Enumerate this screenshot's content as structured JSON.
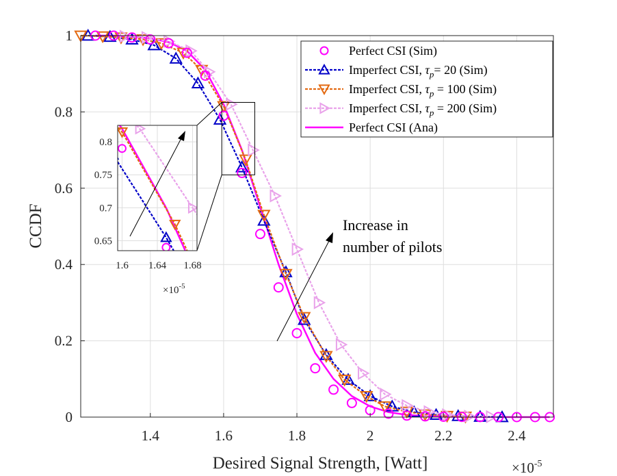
{
  "chart_data": {
    "type": "line",
    "title": "",
    "xlabel": "Desired Signal Strength, [Watt]",
    "ylabel": "CCDF",
    "x_exponent_label": "×10",
    "x_exponent_power": "-5",
    "xlim": [
      1.21,
      2.5
    ],
    "ylim": [
      0,
      1
    ],
    "xticks": [
      1.4,
      1.6,
      1.8,
      2.0,
      2.2,
      2.4
    ],
    "xtick_labels": [
      "1.4",
      "1.6",
      "1.8",
      "2",
      "2.2",
      "2.4"
    ],
    "yticks": [
      0,
      0.2,
      0.4,
      0.6,
      0.8,
      1
    ],
    "ytick_labels": [
      "0",
      "0.2",
      "0.4",
      "0.6",
      "0.8",
      "1"
    ],
    "grid": true,
    "legend_position": "top-right",
    "series": [
      {
        "name": "Perfect CSI (Sim)",
        "legend": {
          "main": "Perfect CSI (Sim)"
        },
        "color": "#ff00ff",
        "line": "none",
        "marker": "circle",
        "x": [
          1.25,
          1.3,
          1.35,
          1.4,
          1.45,
          1.5,
          1.55,
          1.6,
          1.65,
          1.7,
          1.75,
          1.8,
          1.85,
          1.9,
          1.95,
          2.0,
          2.05,
          2.1,
          2.15,
          2.2,
          2.25,
          2.3,
          2.35,
          2.4,
          2.45,
          2.49
        ],
        "y": [
          1.0,
          1.0,
          0.995,
          0.99,
          0.98,
          0.955,
          0.895,
          0.79,
          0.64,
          0.48,
          0.34,
          0.22,
          0.128,
          0.072,
          0.037,
          0.018,
          0.009,
          0.004,
          0.002,
          0.001,
          0.0005,
          0.0002,
          0.0001,
          0.0,
          0.0,
          0.0
        ]
      },
      {
        "name": "Imperfect CSI, τp= 20 (Sim)",
        "legend": {
          "pre": "Imperfect CSI, ",
          "sym": "τ",
          "sub": "p",
          "post": "= 20 (Sim)"
        },
        "color": "#0000c8",
        "line": "dotted",
        "marker": "triangle-up",
        "x": [
          1.23,
          1.29,
          1.35,
          1.41,
          1.47,
          1.53,
          1.59,
          1.65,
          1.71,
          1.77,
          1.82,
          1.88,
          1.94,
          2.0,
          2.06,
          2.12,
          2.18,
          2.24,
          2.3,
          2.36
        ],
        "y": [
          1.0,
          0.997,
          0.99,
          0.975,
          0.94,
          0.875,
          0.78,
          0.655,
          0.515,
          0.38,
          0.255,
          0.163,
          0.098,
          0.055,
          0.028,
          0.013,
          0.006,
          0.003,
          0.001,
          0.0
        ]
      },
      {
        "name": "Imperfect CSI, τp = 100 (Sim)",
        "legend": {
          "pre": "Imperfect CSI, ",
          "sym": "τ",
          "sub": "p",
          "post": " = 100 (Sim)"
        },
        "color": "#e36a12",
        "line": "dotted",
        "marker": "triangle-down",
        "x": [
          1.21,
          1.27,
          1.32,
          1.38,
          1.43,
          1.49,
          1.54,
          1.6,
          1.66,
          1.71,
          1.77,
          1.82,
          1.88,
          1.93,
          1.99,
          2.04,
          2.1,
          2.15,
          2.21,
          2.26
        ],
        "y": [
          1.0,
          0.998,
          0.995,
          0.99,
          0.98,
          0.955,
          0.91,
          0.815,
          0.675,
          0.53,
          0.375,
          0.262,
          0.16,
          0.098,
          0.055,
          0.028,
          0.014,
          0.007,
          0.003,
          0.001
        ]
      },
      {
        "name": "Imperfect CSI, τp = 200 (Sim)",
        "legend": {
          "pre": "Imperfect CSI, ",
          "sym": "τ",
          "sub": "p",
          "post": " = 200 (Sim)"
        },
        "color": "#e9a2ea",
        "line": "dotted",
        "marker": "triangle-right",
        "x": [
          1.33,
          1.39,
          1.45,
          1.51,
          1.56,
          1.62,
          1.68,
          1.74,
          1.8,
          1.86,
          1.92,
          1.98,
          2.04,
          2.1,
          2.16,
          2.21,
          2.27,
          2.33
        ],
        "y": [
          0.998,
          0.995,
          0.985,
          0.96,
          0.905,
          0.82,
          0.7,
          0.58,
          0.44,
          0.3,
          0.19,
          0.115,
          0.06,
          0.03,
          0.014,
          0.006,
          0.002,
          0.001
        ]
      },
      {
        "name": "Perfect CSI (Ana)",
        "legend": {
          "main": "Perfect CSI (Ana)"
        },
        "color": "#ff00ff",
        "line": "solid",
        "marker": "none",
        "x": [
          1.25,
          1.3,
          1.35,
          1.4,
          1.45,
          1.5,
          1.55,
          1.6,
          1.65,
          1.7,
          1.75,
          1.8,
          1.85,
          1.9,
          1.95,
          2.0,
          2.05,
          2.1,
          2.15,
          2.2,
          2.25,
          2.3,
          2.35,
          2.4,
          2.45,
          2.49
        ],
        "y": [
          1.0,
          1.0,
          0.997,
          0.993,
          0.983,
          0.96,
          0.91,
          0.82,
          0.7,
          0.55,
          0.4,
          0.27,
          0.168,
          0.1,
          0.055,
          0.028,
          0.013,
          0.006,
          0.0025,
          0.001,
          0.0005,
          0.0002,
          0.0001,
          0.0,
          0.0,
          0.0
        ]
      }
    ],
    "inset": {
      "xlim": [
        1.595,
        1.685
      ],
      "ylim": [
        0.635,
        0.825
      ],
      "xticks": [
        1.6,
        1.64,
        1.68
      ],
      "xtick_labels": [
        "1.6",
        "1.64",
        "1.68"
      ],
      "yticks": [
        0.65,
        0.7,
        0.75,
        0.8
      ],
      "ytick_labels": [
        "0.65",
        "0.7",
        "0.75",
        "0.8"
      ],
      "x_exponent_label": "×10",
      "x_exponent_power": "-5",
      "zoom_region": {
        "x": [
          1.595,
          1.685
        ],
        "y": [
          0.635,
          0.825
        ]
      }
    },
    "annotations": [
      {
        "text_lines": [
          "Increase in",
          "number of pilots"
        ],
        "arrow": "up-right"
      }
    ]
  }
}
